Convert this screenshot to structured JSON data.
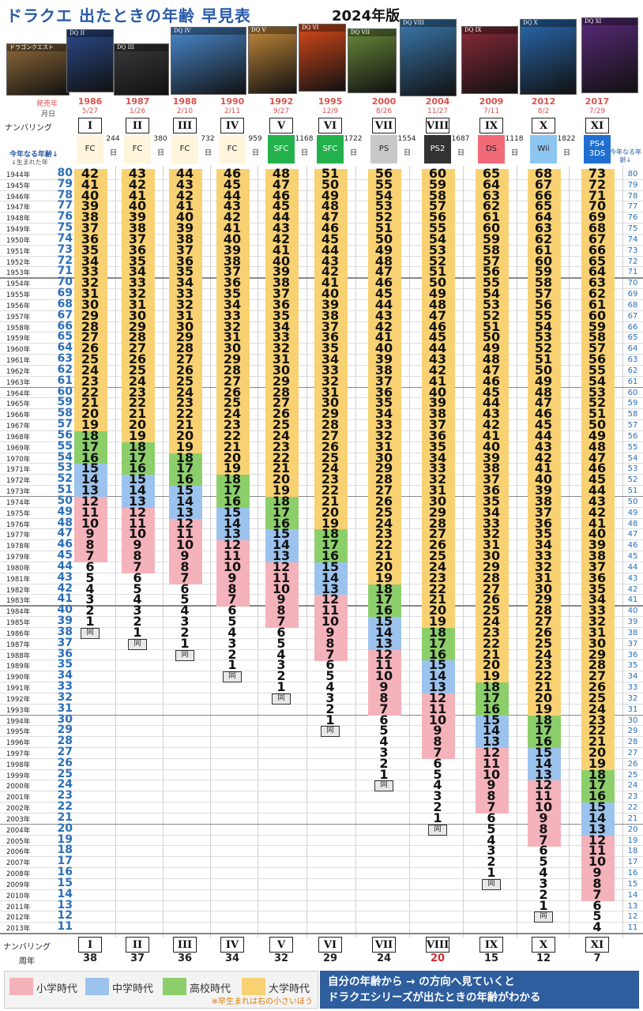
{
  "header": {
    "title": "ドラクエ 出たときの年齢 早見表",
    "edition": "2024年版"
  },
  "labels": {
    "release_year": "発売年",
    "release_date": "月日",
    "numbering_top": "ナンバリング",
    "numbering_bottom": "ナンバリング",
    "anniversary": "周年",
    "age_now_left": "今年なる年齢↓",
    "birth_year": "↓生まれた年",
    "age_now_right": "今年なる年齢↓",
    "day": "日",
    "same_age": "同"
  },
  "colors": {
    "elementary": "#f4b3ba",
    "junior_high": "#9cc3ee",
    "high_school": "#8ccf6a",
    "university": "#f8d172"
  },
  "games": [
    {
      "num": "I",
      "year": "1986",
      "date": "5/27",
      "platform": "FC",
      "plat_color": "#fff5dc",
      "anniversary": "38",
      "cover_bg": "#8f6a3a",
      "cover_title": "ドラゴンクエスト"
    },
    {
      "num": "II",
      "year": "1987",
      "date": "1/26",
      "platform": "FC",
      "plat_color": "#fff5dc",
      "anniversary": "37",
      "cover_bg": "#2a4a8a",
      "cover_title": "DQ II"
    },
    {
      "num": "III",
      "year": "1988",
      "date": "2/10",
      "platform": "FC",
      "plat_color": "#fff5dc",
      "anniversary": "36",
      "cover_bg": "#3a3a3a",
      "cover_title": "DQ III"
    },
    {
      "num": "IV",
      "year": "1990",
      "date": "2/11",
      "platform": "FC",
      "plat_color": "#fff5dc",
      "anniversary": "34",
      "cover_bg": "#4a8ad0",
      "cover_title": "DQ IV"
    },
    {
      "num": "V",
      "year": "1992",
      "date": "9/27",
      "platform": "SFC",
      "plat_color": "#22b14c",
      "anniversary": "32",
      "cover_bg": "#c48a3a",
      "cover_title": "DQ V"
    },
    {
      "num": "VI",
      "year": "1995",
      "date": "12/9",
      "platform": "SFC",
      "plat_color": "#22b14c",
      "anniversary": "29",
      "cover_bg": "#d94a1a",
      "cover_title": "DQ VI"
    },
    {
      "num": "VII",
      "year": "2000",
      "date": "8/26",
      "platform": "PS",
      "plat_color": "#c8c8c8",
      "anniversary": "24",
      "cover_bg": "#6a8a3a",
      "cover_title": "DQ VII"
    },
    {
      "num": "VIII",
      "year": "2004",
      "date": "11/27",
      "platform": "PS2",
      "plat_color": "#333333",
      "anniversary": "20",
      "cover_bg": "#3a7ab0",
      "cover_title": "DQ VIII"
    },
    {
      "num": "IX",
      "year": "2009",
      "date": "7/11",
      "platform": "DS",
      "plat_color": "#f06a78",
      "anniversary": "15",
      "cover_bg": "#8a2a3a",
      "cover_title": "DQ IX"
    },
    {
      "num": "X",
      "year": "2012",
      "date": "8/2",
      "platform": "Wii",
      "plat_color": "#8ec6f2",
      "anniversary": "12",
      "cover_bg": "#2a6ab0",
      "cover_title": "DQ X"
    },
    {
      "num": "XI",
      "year": "2017",
      "date": "7/29",
      "platform": "PS4\n3DS",
      "plat_color": "#1f6fd0",
      "anniversary": "7",
      "cover_bg": "#5a2a7a",
      "cover_title": "DQ XI"
    }
  ],
  "gaps": [
    "244",
    "380",
    "732",
    "959",
    "1168",
    "1722",
    "1554",
    "1687",
    "1118",
    "1822"
  ],
  "first_birth_year": 1944,
  "last_birth_year": 2013,
  "current_year": 2024,
  "legend": {
    "elementary": "小学時代",
    "junior_high": "中学時代",
    "high_school": "高校時代",
    "university": "大学時代",
    "note": "※早生まれは右の小さいほう"
  },
  "footer": {
    "line1": "自分の年齢から → の方向へ見ていくと",
    "line2": "ドラクエシリーズが出たときの年齢がわかる"
  }
}
